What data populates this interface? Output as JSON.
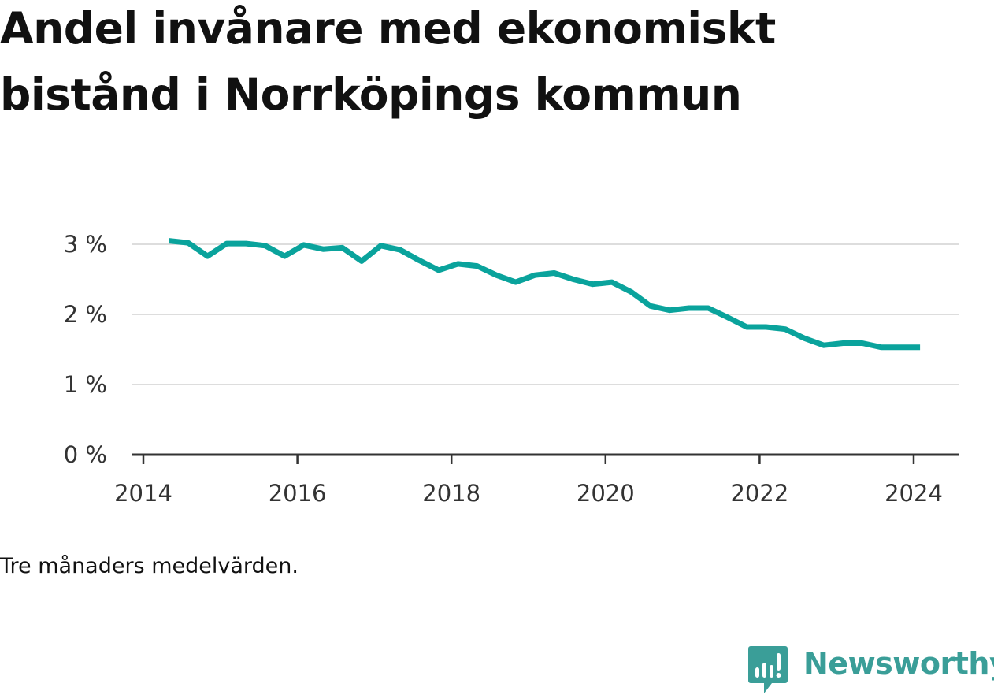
{
  "title": "Andel invånare med ekonomiskt bistånd i Norrköpings kommun",
  "note": "Tre månaders medelvärden.",
  "brand": {
    "name": "Newsworthy",
    "icon": "bar-chart-speech-bubble-icon",
    "color": "#3a9e98"
  },
  "chart_data": {
    "type": "line",
    "title": "Andel invånare med ekonomiskt bistånd i Norrköpings kommun",
    "xlabel": "",
    "ylabel": "",
    "xlim": [
      "2014-01",
      "2024-12"
    ],
    "ylim": [
      0,
      3
    ],
    "x_ticks": [
      "2014",
      "2016",
      "2018",
      "2020",
      "2022",
      "2024"
    ],
    "y_ticks": [
      "0 %",
      "1 %",
      "2 %",
      "3 %"
    ],
    "grid": true,
    "line_color": "#0aa39c",
    "series": [
      {
        "x": [
          "2014-05",
          "2014-08",
          "2014-11",
          "2015-02",
          "2015-05",
          "2015-08",
          "2015-11",
          "2016-02",
          "2016-05",
          "2016-08",
          "2016-11",
          "2017-02",
          "2017-05",
          "2017-08",
          "2017-11",
          "2018-02",
          "2018-05",
          "2018-08",
          "2018-11",
          "2019-02",
          "2019-05",
          "2019-08",
          "2019-11",
          "2020-02",
          "2020-05",
          "2020-08",
          "2020-11",
          "2021-02",
          "2021-05",
          "2021-08",
          "2021-11",
          "2022-02",
          "2022-05",
          "2022-08",
          "2022-11",
          "2023-02",
          "2023-05",
          "2023-08",
          "2023-11",
          "2024-02"
        ],
        "values": [
          3.05,
          3.02,
          2.83,
          3.01,
          3.01,
          2.98,
          2.83,
          2.99,
          2.93,
          2.95,
          2.76,
          2.98,
          2.92,
          2.77,
          2.63,
          2.72,
          2.69,
          2.56,
          2.46,
          2.56,
          2.59,
          2.5,
          2.43,
          2.46,
          2.32,
          2.12,
          2.06,
          2.09,
          2.09,
          1.96,
          1.82,
          1.82,
          1.79,
          1.66,
          1.56,
          1.59,
          1.59,
          1.53,
          1.53,
          1.53
        ]
      }
    ]
  }
}
